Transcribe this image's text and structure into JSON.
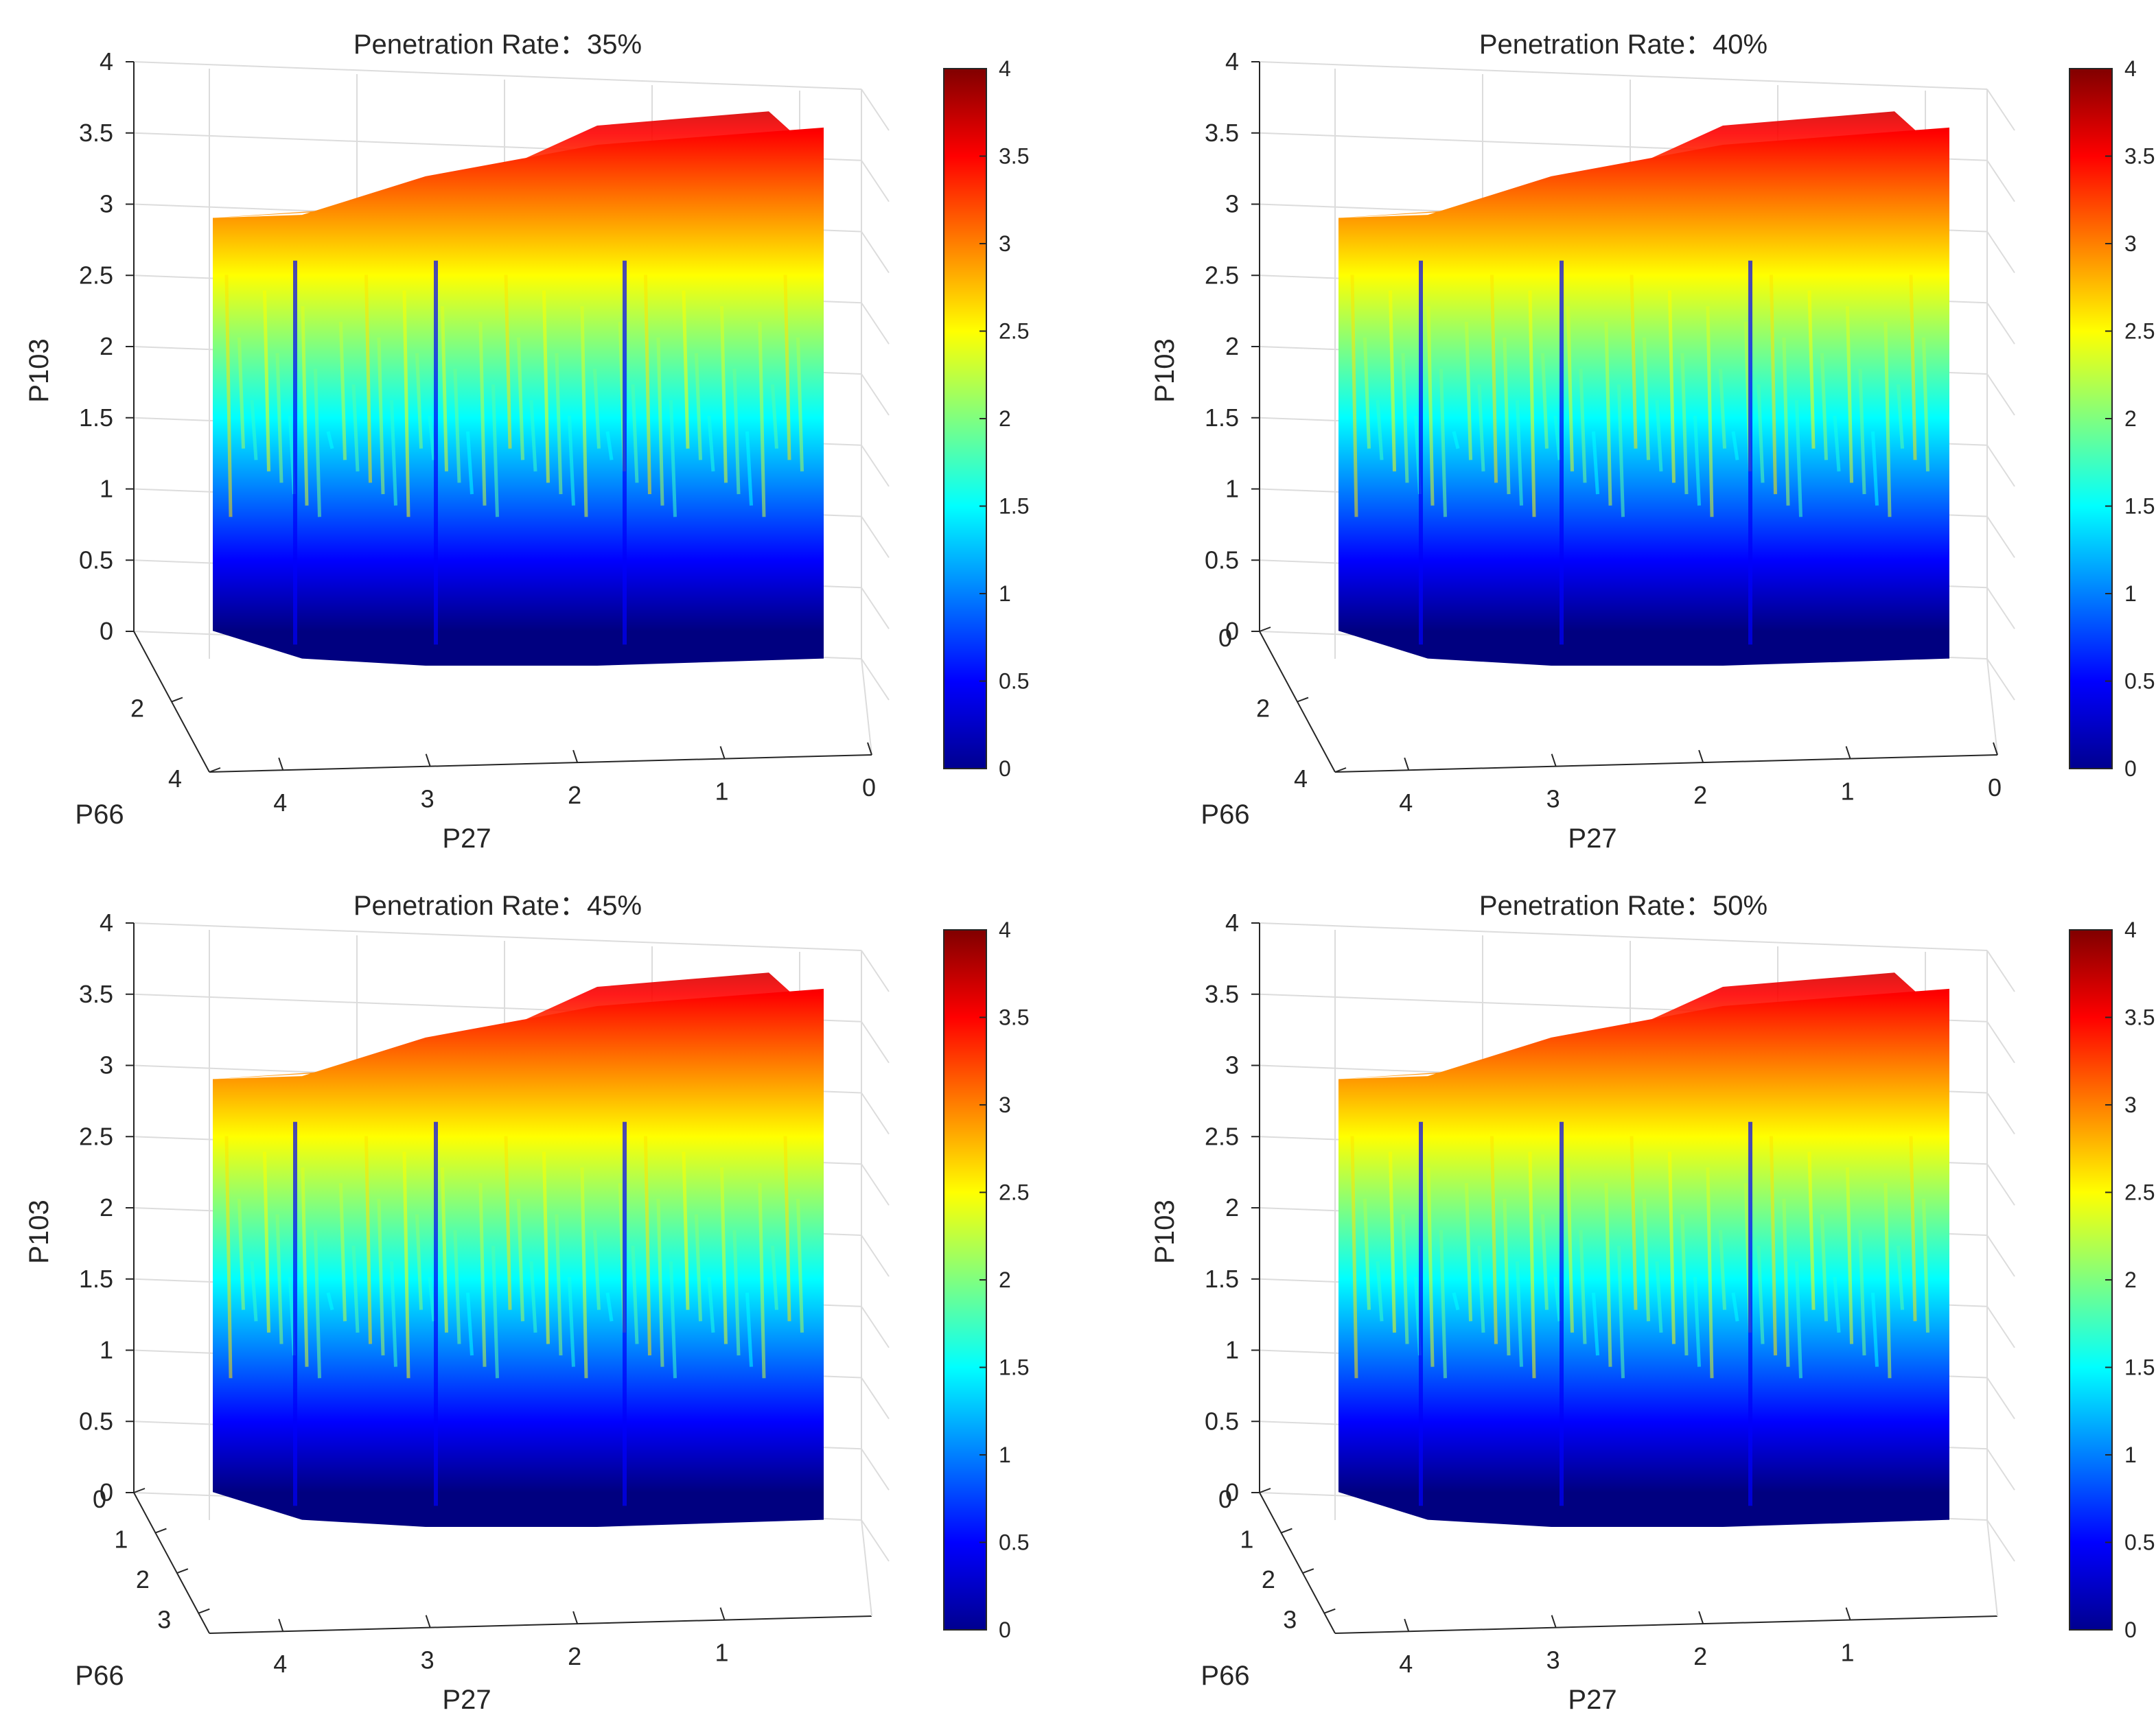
{
  "chart_data": [
    {
      "type": "surface3d",
      "title": "Penetration Rate：35%",
      "xlabel": "P27",
      "ylabel": "P66",
      "zlabel": "P103",
      "xticks": [
        "4",
        "3",
        "2",
        "1",
        "0"
      ],
      "yticks": [
        "2",
        "4"
      ],
      "zticks": [
        "0",
        "0.5",
        "1",
        "1.5",
        "2",
        "2.5",
        "3",
        "3.5",
        "4"
      ],
      "xlim": [
        0,
        4.5
      ],
      "ylim": [
        0,
        4
      ],
      "zlim": [
        0,
        4
      ],
      "colorbar": {
        "colormap": "jet",
        "range": [
          0,
          4
        ],
        "ticks": [
          "0",
          "0.5",
          "1",
          "1.5",
          "2",
          "2.5",
          "3",
          "3.5",
          "4"
        ]
      },
      "surface_top_z": [
        3.0,
        3.05,
        3.35,
        3.6,
        3.75
      ],
      "surface_bottom_z": [
        0.1,
        0.05,
        0.0,
        0.0,
        0.05
      ]
    },
    {
      "type": "surface3d",
      "title": "Penetration Rate：40%",
      "xlabel": "P27",
      "ylabel": "P66",
      "zlabel": "P103",
      "xticks": [
        "4",
        "3",
        "2",
        "1",
        "0"
      ],
      "yticks": [
        "0",
        "2",
        "4"
      ],
      "zticks": [
        "0",
        "0.5",
        "1",
        "1.5",
        "2",
        "2.5",
        "3",
        "3.5",
        "4"
      ],
      "xlim": [
        0,
        4.5
      ],
      "ylim": [
        0,
        4
      ],
      "zlim": [
        0,
        4
      ],
      "colorbar": {
        "colormap": "jet",
        "range": [
          0,
          4
        ],
        "ticks": [
          "0",
          "0.5",
          "1",
          "1.5",
          "2",
          "2.5",
          "3",
          "3.5",
          "4"
        ]
      },
      "surface_top_z": [
        3.0,
        3.05,
        3.35,
        3.6,
        3.75
      ],
      "surface_bottom_z": [
        0.1,
        0.05,
        0.0,
        0.0,
        0.05
      ]
    },
    {
      "type": "surface3d",
      "title": "Penetration Rate：45%",
      "xlabel": "P27",
      "ylabel": "P66",
      "zlabel": "P103",
      "xticks": [
        "4",
        "3",
        "2",
        "1"
      ],
      "yticks": [
        "0",
        "1",
        "2",
        "3"
      ],
      "zticks": [
        "0",
        "0.5",
        "1",
        "1.5",
        "2",
        "2.5",
        "3",
        "3.5",
        "4"
      ],
      "xlim": [
        0,
        4.5
      ],
      "ylim": [
        0,
        3.5
      ],
      "zlim": [
        0,
        4
      ],
      "colorbar": {
        "colormap": "jet",
        "range": [
          0,
          4
        ],
        "ticks": [
          "0",
          "0.5",
          "1",
          "1.5",
          "2",
          "2.5",
          "3",
          "3.5",
          "4"
        ]
      },
      "surface_top_z": [
        3.0,
        3.05,
        3.35,
        3.6,
        3.75
      ],
      "surface_bottom_z": [
        0.1,
        0.05,
        0.0,
        0.0,
        0.05
      ]
    },
    {
      "type": "surface3d",
      "title": "Penetration Rate：50%",
      "xlabel": "P27",
      "ylabel": "P66",
      "zlabel": "P103",
      "xticks": [
        "4",
        "3",
        "2",
        "1"
      ],
      "yticks": [
        "0",
        "1",
        "2",
        "3"
      ],
      "zticks": [
        "0",
        "0.5",
        "1",
        "1.5",
        "2",
        "2.5",
        "3",
        "3.5",
        "4"
      ],
      "xlim": [
        0,
        4.5
      ],
      "ylim": [
        0,
        3.5
      ],
      "zlim": [
        0,
        4
      ],
      "colorbar": {
        "colormap": "jet",
        "range": [
          0,
          4
        ],
        "ticks": [
          "0",
          "0.5",
          "1",
          "1.5",
          "2",
          "2.5",
          "3",
          "3.5",
          "4"
        ]
      },
      "surface_top_z": [
        3.0,
        3.05,
        3.35,
        3.6,
        3.75
      ],
      "surface_bottom_z": [
        0.1,
        0.05,
        0.0,
        0.0,
        0.05
      ]
    }
  ]
}
